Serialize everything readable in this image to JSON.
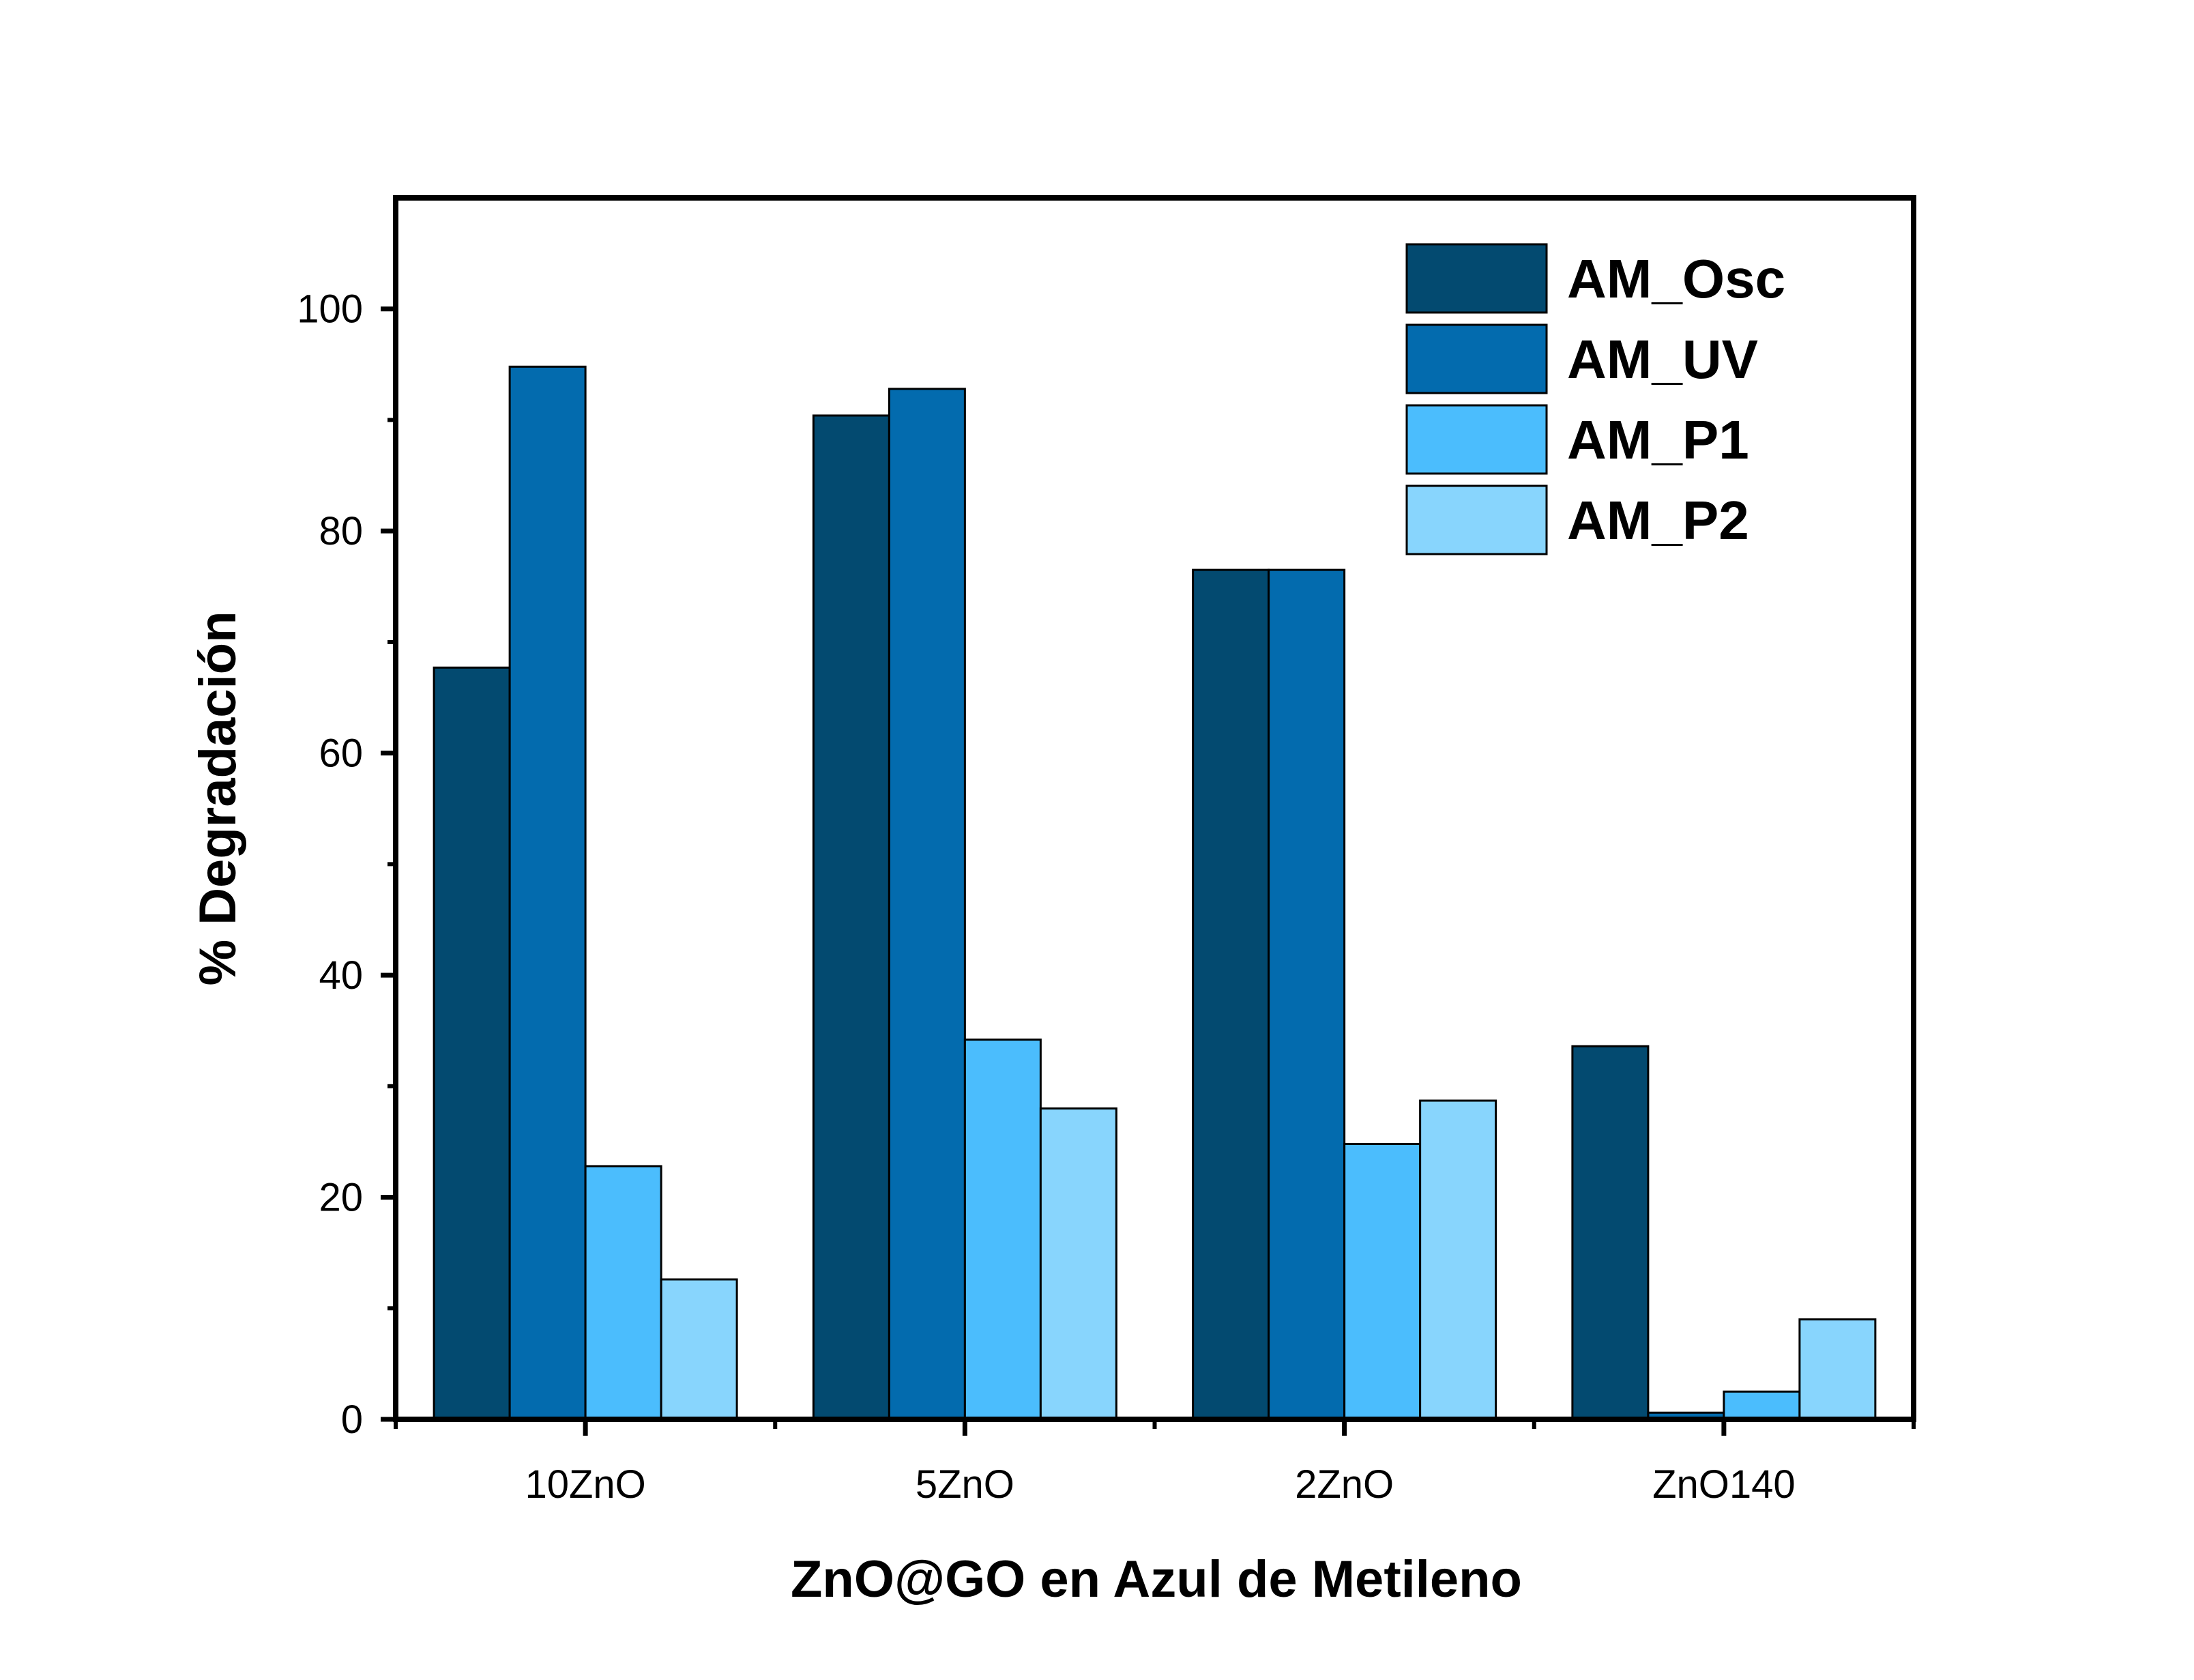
{
  "chart_data": {
    "type": "bar",
    "title": "",
    "xlabel": "ZnO@GO en Azul de Metileno",
    "ylabel": "% Degradación",
    "ylim": [
      0,
      110
    ],
    "yticks": [
      "0",
      "20",
      "40",
      "60",
      "80",
      "100"
    ],
    "categories": [
      "10ZnO",
      "5ZnO",
      "2ZnO",
      "ZnO140"
    ],
    "series": [
      {
        "name": "AM_Osc",
        "color": "#034A70",
        "values": [
          67.7,
          90.4,
          76.5,
          33.6
        ]
      },
      {
        "name": "AM_UV",
        "color": "#036BAE",
        "values": [
          94.8,
          92.8,
          76.5,
          0.6
        ]
      },
      {
        "name": "AM_P1",
        "color": "#4BBDFD",
        "values": [
          22.8,
          34.2,
          24.8,
          2.5
        ]
      },
      {
        "name": "AM_P2",
        "color": "#88D5FD",
        "values": [
          12.6,
          28.0,
          28.7,
          9.0
        ]
      }
    ],
    "grid": false,
    "legend_position": "top-right"
  }
}
